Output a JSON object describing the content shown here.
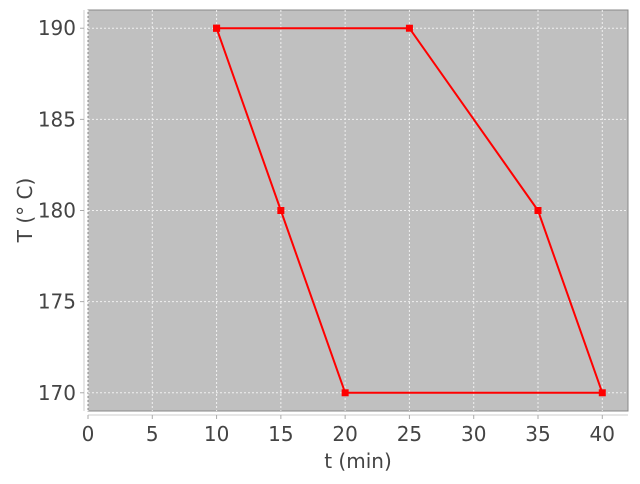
{
  "chart_data": {
    "type": "line",
    "title": "",
    "xlabel": "t (min)",
    "ylabel": "T (° C)",
    "xlim": [
      0,
      42
    ],
    "ylim": [
      169,
      191
    ],
    "xticks": [
      0,
      5,
      10,
      15,
      20,
      25,
      30,
      35,
      40
    ],
    "yticks": [
      170,
      175,
      180,
      185,
      190
    ],
    "grid": true,
    "background": "#c0c0c0",
    "series": [
      {
        "color": "#ff0000",
        "marker": "square",
        "x": [
          10,
          25,
          35,
          40,
          20,
          15,
          10
        ],
        "y": [
          190,
          190,
          180,
          170,
          170,
          180,
          190
        ]
      }
    ]
  }
}
